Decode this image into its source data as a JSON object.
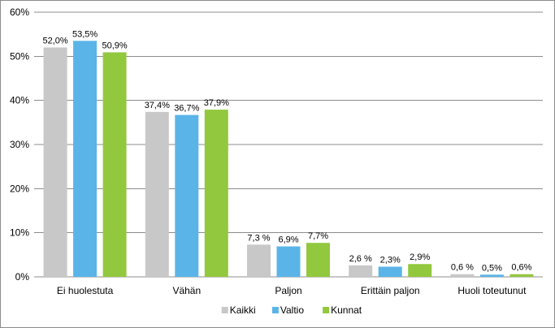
{
  "chart_data": {
    "type": "bar",
    "categories": [
      "Ei huolestuta",
      "Vähän",
      "Paljon",
      "Erittäin paljon",
      "Huoli toteutunut"
    ],
    "series": [
      {
        "name": "Kaikki",
        "color": "#c8c8c8",
        "values": [
          52.0,
          37.4,
          7.3,
          2.6,
          0.6
        ],
        "labels": [
          "52,0%",
          "37,4%",
          "7,3 %",
          "2,6 %",
          "0,6 %"
        ]
      },
      {
        "name": "Valtio",
        "color": "#5ab4e8",
        "values": [
          53.5,
          36.7,
          6.9,
          2.3,
          0.5
        ],
        "labels": [
          "53,5%",
          "36,7%",
          "6,9%",
          "2,3%",
          "0,5%"
        ]
      },
      {
        "name": "Kunnat",
        "color": "#92c83e",
        "values": [
          50.9,
          37.9,
          7.7,
          2.9,
          0.6
        ],
        "labels": [
          "50,9%",
          "37,9%",
          "7,7%",
          "2,9%",
          "0,6%"
        ]
      }
    ],
    "y_ticks": [
      "0%",
      "10%",
      "20%",
      "30%",
      "40%",
      "50%",
      "60%"
    ],
    "ylim": [
      0,
      60
    ],
    "grid": true,
    "legend_position": "bottom-center"
  }
}
